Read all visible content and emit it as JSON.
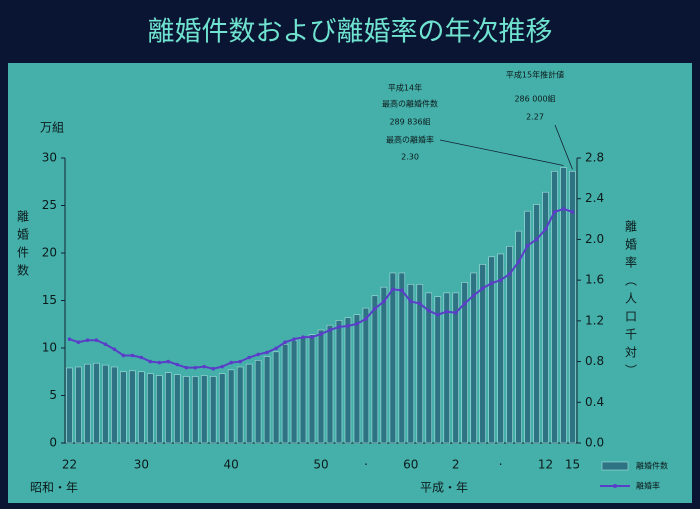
{
  "chart_data": {
    "type": "bar_line",
    "title": "離婚件数および離婚率の年次推移",
    "y_unit": "万組",
    "ylabel": "離婚件数",
    "y2label": "離婚率（人口千対）",
    "x_axis_labels": [
      "昭和・年",
      "平成・年"
    ],
    "categories": [
      "22",
      null,
      null,
      null,
      null,
      null,
      null,
      null,
      "30",
      null,
      null,
      null,
      null,
      null,
      null,
      null,
      null,
      null,
      "40",
      null,
      null,
      null,
      null,
      null,
      null,
      null,
      null,
      null,
      "50",
      null,
      null,
      null,
      null,
      "·",
      null,
      null,
      null,
      null,
      "60",
      null,
      null,
      null,
      null,
      "2",
      null,
      null,
      null,
      null,
      "·",
      null,
      null,
      null,
      null,
      "12",
      null,
      null,
      "15"
    ],
    "series": [
      {
        "name": "離婚件数",
        "color": "#2e7384",
        "axis": "y",
        "values": [
          7.9,
          8.0,
          8.3,
          8.4,
          8.2,
          8.0,
          7.5,
          7.6,
          7.5,
          7.3,
          7.1,
          7.4,
          7.2,
          7.0,
          7.0,
          7.1,
          7.0,
          7.3,
          7.7,
          8.0,
          8.3,
          8.7,
          9.1,
          9.6,
          10.4,
          10.8,
          11.2,
          11.4,
          11.9,
          12.4,
          12.9,
          13.2,
          13.5,
          14.2,
          15.5,
          16.4,
          17.9,
          17.9,
          16.7,
          16.7,
          15.8,
          15.4,
          15.8,
          15.8,
          16.9,
          17.9,
          18.8,
          19.6,
          19.9,
          20.7,
          22.3,
          24.4,
          25.1,
          26.4,
          28.6,
          29.0,
          28.6
        ]
      },
      {
        "name": "離婚率",
        "color": "#5b3ec8",
        "axis": "y2",
        "values": [
          1.02,
          0.99,
          1.01,
          1.01,
          0.97,
          0.92,
          0.86,
          0.86,
          0.84,
          0.8,
          0.79,
          0.8,
          0.77,
          0.74,
          0.74,
          0.75,
          0.73,
          0.75,
          0.79,
          0.8,
          0.84,
          0.87,
          0.89,
          0.93,
          0.99,
          1.02,
          1.04,
          1.04,
          1.07,
          1.11,
          1.14,
          1.15,
          1.17,
          1.22,
          1.32,
          1.39,
          1.51,
          1.5,
          1.39,
          1.37,
          1.3,
          1.26,
          1.29,
          1.28,
          1.37,
          1.45,
          1.52,
          1.57,
          1.6,
          1.66,
          1.78,
          1.94,
          2.0,
          2.1,
          2.27,
          2.3,
          2.27
        ]
      }
    ],
    "ylim": [
      0,
      30
    ],
    "yticks": [
      0,
      5,
      10,
      15,
      20,
      25,
      30
    ],
    "y2lim": [
      0,
      2.8
    ],
    "y2ticks": [
      {
        "value": 0,
        "label": "0.0"
      },
      0.4,
      0.8,
      1.2,
      1.6,
      {
        "value": 2,
        "label": "2.0"
      },
      2.4,
      2.8
    ],
    "annotations": [
      "平成14年",
      "最高の離婚件数",
      "289 836組",
      "最高の離婚率",
      "2.30",
      "平成15年推計値",
      "286 000組",
      "2.27"
    ],
    "legend": "bottom-right"
  }
}
